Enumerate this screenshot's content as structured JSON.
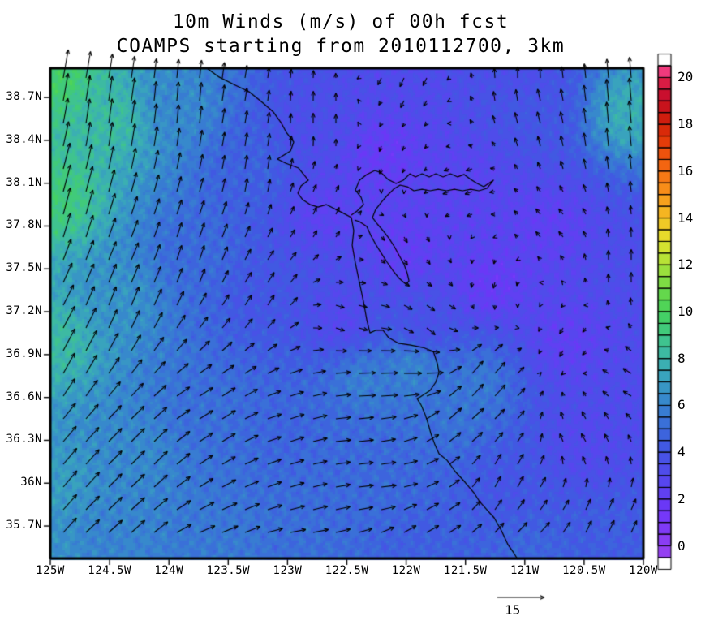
{
  "title": {
    "line1": "10m Winds (m/s) of 00h fcst",
    "line2": "COAMPS starting from 2010112700, 3km"
  },
  "axes": {
    "x_tick_labels": [
      "125W",
      "124.5W",
      "124W",
      "123.5W",
      "123W",
      "122.5W",
      "122W",
      "121.5W",
      "121W",
      "120.5W",
      "120W"
    ],
    "x_tick_values": [
      -125,
      -124.5,
      -124,
      -123.5,
      -123,
      -122.5,
      -122,
      -121.5,
      -121,
      -120.5,
      -120
    ],
    "y_tick_labels": [
      "38.7N",
      "38.4N",
      "38.1N",
      "37.8N",
      "37.5N",
      "37.2N",
      "36.9N",
      "36.6N",
      "36.3N",
      "36N",
      "35.7N"
    ],
    "y_tick_values": [
      38.7,
      38.4,
      38.1,
      37.8,
      37.5,
      37.2,
      36.9,
      36.6,
      36.3,
      36.0,
      35.7
    ]
  },
  "colorbar": {
    "labels": [
      "0",
      "2",
      "4",
      "6",
      "8",
      "10",
      "12",
      "14",
      "16",
      "18",
      "20"
    ],
    "label_values": [
      0,
      2,
      4,
      6,
      8,
      10,
      12,
      14,
      16,
      18,
      20
    ],
    "value_min": -0.5,
    "value_max": 20.5,
    "cell_step": 0.5,
    "cell_colors_bottom_to_top": [
      "#9440f2",
      "#8a3df4",
      "#7f3af6",
      "#7538f8",
      "#6a38f6",
      "#6040f2",
      "#5746ee",
      "#4f4cea",
      "#4852e6",
      "#4159e2",
      "#3d64dd",
      "#3a70d8",
      "#387cd2",
      "#3789cc",
      "#3896c5",
      "#39a3bd",
      "#3bafb2",
      "#3dbaa2",
      "#3fc38f",
      "#41ca7a",
      "#44d066",
      "#50d457",
      "#64d84c",
      "#7edc44",
      "#9ae03d",
      "#b8e236",
      "#d4e230",
      "#e7da2b",
      "#f0c926",
      "#f5b521",
      "#f7a11d",
      "#f88d19",
      "#f77915",
      "#f36511",
      "#ee520d",
      "#e53c09",
      "#d92a09",
      "#cf1d0e",
      "#c8131c",
      "#c90f2e",
      "#da1c44",
      "#ef3a7c"
    ]
  },
  "reference_vector": {
    "label": "15",
    "speed_ms": 15
  },
  "chart_data": {
    "type": "vector_field_map",
    "variable": "10m Winds (m/s)",
    "forecast": "00h fcst",
    "model": "COAMPS",
    "init_time": "2010112700",
    "resolution": "3km",
    "lon_range": [
      -125,
      -120
    ],
    "lat_range": [
      35.47,
      38.91
    ],
    "speed_scale_range": [
      0,
      20
    ],
    "colorbar_position": "right",
    "reference_speed_ms": 15,
    "wind_samples_lon_lat_speed_dirTo": [
      [
        -124.97,
        38.85,
        9.5,
        10
      ],
      [
        -124.97,
        38.0,
        9.2,
        15
      ],
      [
        -124.97,
        37.0,
        8.2,
        28
      ],
      [
        -124.97,
        36.0,
        7.0,
        40
      ],
      [
        -124.97,
        35.55,
        6.5,
        42
      ],
      [
        -124.5,
        38.55,
        8.2,
        8
      ],
      [
        -124.45,
        37.3,
        6.6,
        22
      ],
      [
        -124.3,
        36.2,
        6.2,
        45
      ],
      [
        -124.55,
        35.6,
        6.0,
        48
      ],
      [
        -123.95,
        38.65,
        6.2,
        5
      ],
      [
        -123.8,
        37.6,
        5.0,
        18
      ],
      [
        -123.7,
        36.5,
        5.2,
        58
      ],
      [
        -123.6,
        35.55,
        5.6,
        68
      ],
      [
        -123.3,
        38.2,
        4.6,
        8
      ],
      [
        -123.2,
        37.3,
        4.0,
        32
      ],
      [
        -123.0,
        36.4,
        4.8,
        72
      ],
      [
        -122.9,
        35.55,
        5.2,
        80
      ],
      [
        -122.75,
        38.5,
        3.4,
        0
      ],
      [
        -122.7,
        37.9,
        2.6,
        25
      ],
      [
        -122.55,
        37.15,
        3.0,
        110
      ],
      [
        -122.35,
        36.7,
        5.8,
        88
      ],
      [
        -122.3,
        36.0,
        5.0,
        84
      ],
      [
        -122.2,
        38.3,
        2.0,
        200
      ],
      [
        -122.0,
        37.65,
        2.2,
        150
      ],
      [
        -121.85,
        37.1,
        3.6,
        130
      ],
      [
        -121.95,
        36.8,
        6.0,
        90
      ],
      [
        -121.6,
        36.5,
        5.4,
        48
      ],
      [
        -121.4,
        36.7,
        5.6,
        40
      ],
      [
        -121.9,
        35.6,
        4.6,
        60
      ],
      [
        -121.5,
        38.05,
        2.6,
        250
      ],
      [
        -121.3,
        37.4,
        2.0,
        195
      ],
      [
        -121.15,
        36.0,
        4.0,
        28
      ],
      [
        -121.0,
        35.5,
        4.8,
        45
      ],
      [
        -120.9,
        38.6,
        4.0,
        345
      ],
      [
        -120.8,
        37.8,
        2.4,
        320
      ],
      [
        -120.65,
        37.0,
        2.4,
        210
      ],
      [
        -120.5,
        36.3,
        3.0,
        330
      ],
      [
        -120.3,
        35.6,
        4.4,
        25
      ],
      [
        -120.12,
        38.6,
        7.6,
        355
      ],
      [
        -120.1,
        37.5,
        3.4,
        0
      ],
      [
        -121.0,
        38.85,
        3.6,
        0
      ],
      [
        -122.0,
        38.85,
        3.2,
        205
      ],
      [
        -120.05,
        36.7,
        3.2,
        300
      ],
      [
        -122.5,
        36.35,
        5.0,
        85
      ]
    ],
    "coastline_lon_lat": [
      [
        -123.68,
        38.905
      ],
      [
        -123.577,
        38.843
      ],
      [
        -123.44,
        38.786
      ],
      [
        -123.324,
        38.74
      ],
      [
        -123.222,
        38.672
      ],
      [
        -123.119,
        38.598
      ],
      [
        -123.051,
        38.519
      ],
      [
        -123.01,
        38.456
      ],
      [
        -122.948,
        38.388
      ],
      [
        -122.975,
        38.325
      ],
      [
        -123.085,
        38.269
      ],
      [
        -123.016,
        38.24
      ],
      [
        -122.907,
        38.206
      ],
      [
        -122.825,
        38.121
      ],
      [
        -122.886,
        38.081
      ],
      [
        -122.913,
        38.03
      ],
      [
        -122.872,
        37.984
      ],
      [
        -122.81,
        37.95
      ],
      [
        -122.743,
        37.933
      ],
      [
        -122.674,
        37.95
      ],
      [
        -122.606,
        37.922
      ],
      [
        -122.537,
        37.893
      ],
      [
        -122.462,
        37.859
      ],
      [
        -122.442,
        37.768
      ],
      [
        -122.455,
        37.666
      ],
      [
        -122.428,
        37.541
      ],
      [
        -122.394,
        37.405
      ],
      [
        -122.359,
        37.268
      ],
      [
        -122.332,
        37.143
      ],
      [
        -122.305,
        37.052
      ],
      [
        -122.257,
        37.07
      ],
      [
        -122.195,
        37.07
      ],
      [
        -122.147,
        37.018
      ],
      [
        -122.065,
        36.979
      ],
      [
        -121.963,
        36.967
      ],
      [
        -121.86,
        36.95
      ],
      [
        -121.771,
        36.922
      ],
      [
        -121.737,
        36.837
      ],
      [
        -121.723,
        36.774
      ],
      [
        -121.751,
        36.706
      ],
      [
        -121.798,
        36.649
      ],
      [
        -121.881,
        36.604
      ],
      [
        -121.908,
        36.592
      ],
      [
        -121.874,
        36.547
      ],
      [
        -121.839,
        36.478
      ],
      [
        -121.812,
        36.41
      ],
      [
        -121.792,
        36.348
      ],
      [
        -121.757,
        36.268
      ],
      [
        -121.723,
        36.206
      ],
      [
        -121.655,
        36.16
      ],
      [
        -121.586,
        36.081
      ],
      [
        -121.504,
        36.007
      ],
      [
        -121.429,
        35.933
      ],
      [
        -121.381,
        35.871
      ],
      [
        -121.313,
        35.808
      ],
      [
        -121.258,
        35.757
      ],
      [
        -121.196,
        35.666
      ],
      [
        -121.142,
        35.57
      ],
      [
        -121.094,
        35.513
      ],
      [
        -121.06,
        35.467
      ]
    ],
    "bay_outline_lon_lat": [
      [
        -122.462,
        37.876
      ],
      [
        -122.414,
        37.905
      ],
      [
        -122.359,
        37.95
      ],
      [
        -122.38,
        38.001
      ],
      [
        -122.428,
        38.052
      ],
      [
        -122.394,
        38.121
      ],
      [
        -122.332,
        38.161
      ],
      [
        -122.264,
        38.189
      ],
      [
        -122.209,
        38.172
      ],
      [
        -122.154,
        38.127
      ],
      [
        -122.085,
        38.098
      ],
      [
        -122.024,
        38.121
      ],
      [
        -121.969,
        38.166
      ],
      [
        -121.921,
        38.144
      ],
      [
        -121.866,
        38.166
      ],
      [
        -121.805,
        38.144
      ],
      [
        -121.75,
        38.166
      ],
      [
        -121.689,
        38.144
      ],
      [
        -121.627,
        38.166
      ],
      [
        -121.566,
        38.144
      ],
      [
        -121.511,
        38.161
      ],
      [
        -121.456,
        38.127
      ],
      [
        -121.401,
        38.098
      ],
      [
        -121.346,
        38.075
      ],
      [
        -121.305,
        38.098
      ],
      [
        -121.264,
        38.121
      ],
      [
        -121.319,
        38.064
      ],
      [
        -121.387,
        38.047
      ],
      [
        -121.456,
        38.058
      ],
      [
        -121.524,
        38.047
      ],
      [
        -121.593,
        38.058
      ],
      [
        -121.661,
        38.047
      ],
      [
        -121.73,
        38.058
      ],
      [
        -121.798,
        38.047
      ],
      [
        -121.866,
        38.058
      ],
      [
        -121.935,
        38.047
      ],
      [
        -121.99,
        38.075
      ],
      [
        -122.051,
        38.087
      ],
      [
        -122.106,
        38.058
      ],
      [
        -122.161,
        38.013
      ],
      [
        -122.209,
        37.967
      ],
      [
        -122.257,
        37.916
      ],
      [
        -122.284,
        37.859
      ],
      [
        -122.243,
        37.814
      ],
      [
        -122.195,
        37.768
      ],
      [
        -122.147,
        37.717
      ],
      [
        -122.099,
        37.655
      ],
      [
        -122.058,
        37.592
      ],
      [
        -122.017,
        37.53
      ],
      [
        -121.99,
        37.467
      ],
      [
        -121.976,
        37.416
      ],
      [
        -122.003,
        37.393
      ],
      [
        -122.058,
        37.433
      ],
      [
        -122.113,
        37.49
      ],
      [
        -122.161,
        37.547
      ],
      [
        -122.209,
        37.609
      ],
      [
        -122.257,
        37.672
      ],
      [
        -122.298,
        37.734
      ],
      [
        -122.332,
        37.797
      ],
      [
        -122.394,
        37.831
      ],
      [
        -122.435,
        37.842
      ]
    ]
  }
}
